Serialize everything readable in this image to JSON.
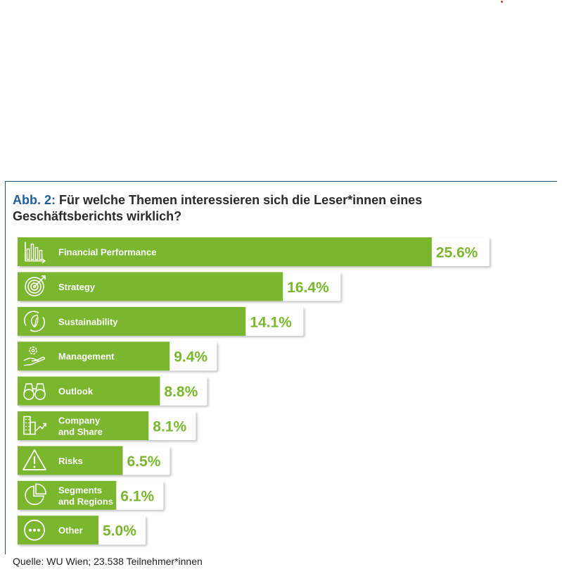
{
  "title": {
    "prefix": "Abb. 2:",
    "text": "Für welche Themen interessieren sich die Leser*innen eines Geschäftsberichts wirklich?"
  },
  "source": "Quelle: WU Wien; 23.538 Teilnehmer*innen",
  "colors": {
    "bar": "#7ab72e",
    "label": "#ffffff",
    "value": "#7ab72e",
    "box": "#ffffff",
    "accent": "#1f4e79"
  },
  "chart_data": {
    "type": "bar",
    "orientation": "horizontal",
    "categories": [
      [
        "Financial Performance"
      ],
      [
        "Strategy"
      ],
      [
        "Sustainability"
      ],
      [
        "Management"
      ],
      [
        "Outlook"
      ],
      [
        "Company",
        "and Share"
      ],
      [
        "Risks"
      ],
      [
        "Segments",
        "and Regions"
      ],
      [
        "Other"
      ]
    ],
    "values": [
      25.6,
      16.4,
      14.1,
      9.4,
      8.8,
      8.1,
      6.5,
      6.1,
      5.0
    ],
    "value_labels": [
      "25.6%",
      "16.4%",
      "14.1%",
      "9.4%",
      "8.8%",
      "8.1%",
      "6.5%",
      "6.1%",
      "5.0%"
    ],
    "icons": [
      "bar-chart-icon",
      "target-icon",
      "leaf-cycle-icon",
      "gear-hand-icon",
      "binoculars-icon",
      "building-growth-icon",
      "warning-icon",
      "pie-chart-icon",
      "more-dots-icon"
    ]
  }
}
